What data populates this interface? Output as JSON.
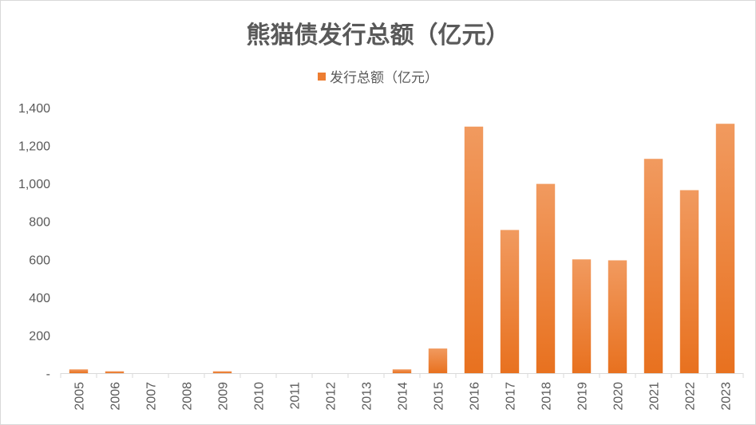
{
  "chart_data": {
    "type": "bar",
    "title": "熊猫债发行总额（亿元）",
    "legend": {
      "position": "top",
      "entries": [
        "发行总额（亿元）"
      ]
    },
    "categories": [
      "2005",
      "2006",
      "2007",
      "2008",
      "2009",
      "2010",
      "2011",
      "2012",
      "2013",
      "2014",
      "2015",
      "2016",
      "2017",
      "2018",
      "2019",
      "2020",
      "2021",
      "2022",
      "2023"
    ],
    "series": [
      {
        "name": "发行总额（亿元）",
        "color": "#ed7d31",
        "values": [
          20,
          10,
          0,
          0,
          10,
          0,
          0,
          0,
          0,
          20,
          130,
          1300,
          755,
          998,
          600,
          595,
          1130,
          965,
          1315
        ]
      }
    ],
    "ylim": [
      0,
      1400
    ],
    "yticks": [
      0,
      200,
      400,
      600,
      800,
      1000,
      1200,
      1400
    ],
    "ytick_labels": [
      "-",
      "200",
      "400",
      "600",
      "800",
      "1,000",
      "1,200",
      "1,400"
    ],
    "grid": false
  }
}
